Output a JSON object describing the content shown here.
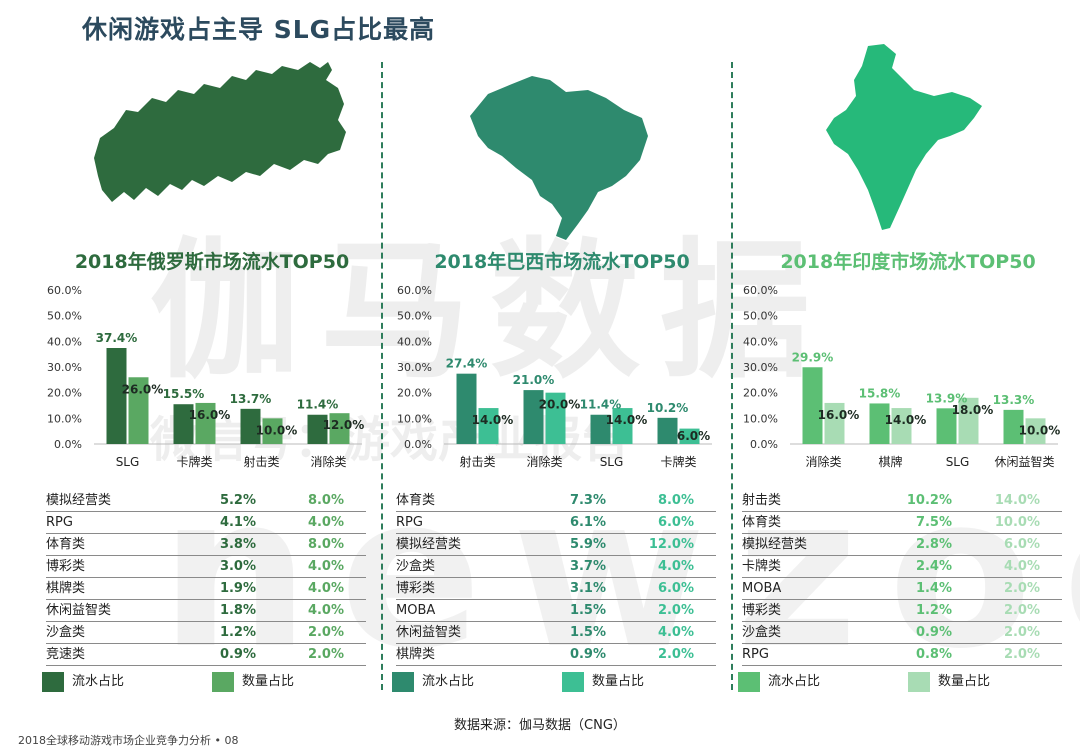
{
  "page": {
    "title": "休闲游戏占主导   SLG占比最高",
    "source": "数据来源：伽马数据（CNG）",
    "footer": "2018全球移动游戏市场企业竞争力分析 • 08",
    "watermark_main": "伽马数据",
    "watermark_sub": "微信号：游戏产业报告",
    "watermark_brand": "newzoo"
  },
  "colors": {
    "russia_map": "#2e6b3e",
    "brazil_map": "#2e8a6e",
    "india_map": "#26b97a",
    "russia_rev": "#2e6b3e",
    "russia_cnt": "#5aa862",
    "brazil_rev": "#2e8a6e",
    "brazil_cnt": "#3dbf94",
    "india_rev": "#5cbf74",
    "india_cnt": "#a8dcb4"
  },
  "chart_data": [
    {
      "type": "bar",
      "title": "2018年俄罗斯市场流水TOP50",
      "categories": [
        "SLG",
        "卡牌类",
        "射击类",
        "消除类"
      ],
      "series": [
        {
          "name": "流水占比",
          "values": [
            37.4,
            15.5,
            13.7,
            11.4
          ],
          "labels": [
            "37.4%",
            "15.5%",
            "13.7%",
            "11.4%"
          ]
        },
        {
          "name": "数量占比",
          "values": [
            26.0,
            16.0,
            10.0,
            12.0
          ],
          "labels": [
            "26.0%",
            "16.0%",
            "10.0%",
            "12.0%"
          ]
        }
      ],
      "ylim": [
        0,
        60
      ],
      "yticks": [
        "0.0%",
        "10.0%",
        "20.0%",
        "30.0%",
        "40.0%",
        "50.0%",
        "60.0%"
      ],
      "table": [
        {
          "name": "模拟经营类",
          "rev": "5.2%",
          "cnt": "8.0%"
        },
        {
          "name": "RPG",
          "rev": "4.1%",
          "cnt": "4.0%"
        },
        {
          "name": "体育类",
          "rev": "3.8%",
          "cnt": "8.0%"
        },
        {
          "name": "博彩类",
          "rev": "3.0%",
          "cnt": "4.0%"
        },
        {
          "name": "棋牌类",
          "rev": "1.9%",
          "cnt": "4.0%"
        },
        {
          "name": "休闲益智类",
          "rev": "1.8%",
          "cnt": "4.0%"
        },
        {
          "name": "沙盒类",
          "rev": "1.2%",
          "cnt": "2.0%"
        },
        {
          "name": "竞速类",
          "rev": "0.9%",
          "cnt": "2.0%"
        }
      ],
      "legend": [
        "流水占比",
        "数量占比"
      ]
    },
    {
      "type": "bar",
      "title": "2018年巴西市场流水TOP50",
      "categories": [
        "射击类",
        "消除类",
        "SLG",
        "卡牌类"
      ],
      "series": [
        {
          "name": "流水占比",
          "values": [
            27.4,
            21.0,
            11.4,
            10.2
          ],
          "labels": [
            "27.4%",
            "21.0%",
            "11.4%",
            "10.2%"
          ]
        },
        {
          "name": "数量占比",
          "values": [
            14.0,
            20.0,
            14.0,
            6.0
          ],
          "labels": [
            "14.0%",
            "20.0%",
            "14.0%",
            "6.0%"
          ]
        }
      ],
      "ylim": [
        0,
        60
      ],
      "yticks": [
        "0.0%",
        "10.0%",
        "20.0%",
        "30.0%",
        "40.0%",
        "50.0%",
        "60.0%"
      ],
      "table": [
        {
          "name": "体育类",
          "rev": "7.3%",
          "cnt": "8.0%"
        },
        {
          "name": "RPG",
          "rev": "6.1%",
          "cnt": "6.0%"
        },
        {
          "name": "模拟经营类",
          "rev": "5.9%",
          "cnt": "12.0%"
        },
        {
          "name": "沙盒类",
          "rev": "3.7%",
          "cnt": "4.0%"
        },
        {
          "name": "博彩类",
          "rev": "3.1%",
          "cnt": "6.0%"
        },
        {
          "name": "MOBA",
          "rev": "1.5%",
          "cnt": "2.0%"
        },
        {
          "name": "休闲益智类",
          "rev": "1.5%",
          "cnt": "4.0%"
        },
        {
          "name": "棋牌类",
          "rev": "0.9%",
          "cnt": "2.0%"
        }
      ],
      "legend": [
        "流水占比",
        "数量占比"
      ]
    },
    {
      "type": "bar",
      "title": "2018年印度市场流水TOP50",
      "categories": [
        "消除类",
        "棋牌",
        "SLG",
        "休闲益智类"
      ],
      "series": [
        {
          "name": "流水占比",
          "values": [
            29.9,
            15.8,
            13.9,
            13.3
          ],
          "labels": [
            "29.9%",
            "15.8%",
            "13.9%",
            "13.3%"
          ]
        },
        {
          "name": "数量占比",
          "values": [
            16.0,
            14.0,
            18.0,
            10.0
          ],
          "labels": [
            "16.0%",
            "14.0%",
            "18.0%",
            "10.0%"
          ]
        }
      ],
      "ylim": [
        0,
        60
      ],
      "yticks": [
        "0.0%",
        "10.0%",
        "20.0%",
        "30.0%",
        "40.0%",
        "50.0%",
        "60.0%"
      ],
      "table": [
        {
          "name": "射击类",
          "rev": "10.2%",
          "cnt": "14.0%"
        },
        {
          "name": "体育类",
          "rev": "7.5%",
          "cnt": "10.0%"
        },
        {
          "name": "模拟经营类",
          "rev": "2.8%",
          "cnt": "6.0%"
        },
        {
          "name": "卡牌类",
          "rev": "2.4%",
          "cnt": "4.0%"
        },
        {
          "name": "MOBA",
          "rev": "1.4%",
          "cnt": "2.0%"
        },
        {
          "name": "博彩类",
          "rev": "1.2%",
          "cnt": "2.0%"
        },
        {
          "name": "沙盒类",
          "rev": "0.9%",
          "cnt": "2.0%"
        },
        {
          "name": "RPG",
          "rev": "0.8%",
          "cnt": "2.0%"
        }
      ],
      "legend": [
        "流水占比",
        "数量占比"
      ]
    }
  ]
}
